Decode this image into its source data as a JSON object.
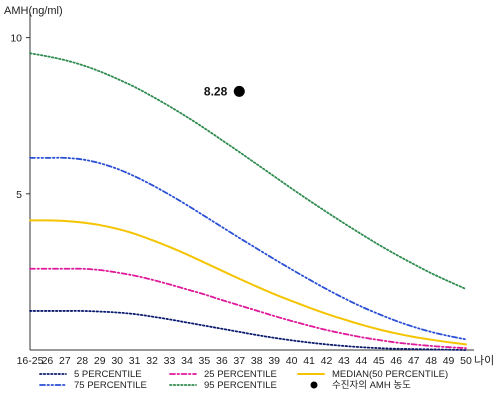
{
  "chart_data": {
    "type": "line",
    "ylabel": "AMH(ng/ml)",
    "xlabel": "나이",
    "ylim": [
      0,
      10.5
    ],
    "y_ticks": [
      5,
      10
    ],
    "categories": [
      "16-25",
      "26",
      "27",
      "28",
      "29",
      "30",
      "31",
      "32",
      "33",
      "34",
      "35",
      "36",
      "37",
      "38",
      "39",
      "40",
      "41",
      "42",
      "43",
      "44",
      "45",
      "46",
      "47",
      "48",
      "49",
      "50"
    ],
    "series": [
      {
        "name": "5 PERCENTILE",
        "color": "#0a1a6e",
        "dash": "dotted",
        "values": [
          1.25,
          1.25,
          1.25,
          1.25,
          1.23,
          1.2,
          1.15,
          1.07,
          0.98,
          0.88,
          0.78,
          0.68,
          0.58,
          0.48,
          0.39,
          0.31,
          0.24,
          0.18,
          0.13,
          0.09,
          0.06,
          0.04,
          0.03,
          0.02,
          0.01,
          0.0
        ]
      },
      {
        "name": "25 PERCENTILE",
        "color": "#e0189a",
        "dash": "dashdot",
        "values": [
          2.6,
          2.6,
          2.6,
          2.6,
          2.56,
          2.48,
          2.38,
          2.25,
          2.1,
          1.94,
          1.78,
          1.6,
          1.43,
          1.26,
          1.09,
          0.93,
          0.78,
          0.64,
          0.52,
          0.41,
          0.32,
          0.24,
          0.18,
          0.13,
          0.09,
          0.06
        ]
      },
      {
        "name": "MEDIAN(50 PERCENTILE)",
        "color": "#f5c400",
        "dash": "solid",
        "values": [
          4.15,
          4.15,
          4.13,
          4.08,
          4.0,
          3.88,
          3.72,
          3.52,
          3.3,
          3.06,
          2.8,
          2.54,
          2.28,
          2.03,
          1.79,
          1.57,
          1.36,
          1.16,
          0.98,
          0.81,
          0.66,
          0.53,
          0.42,
          0.33,
          0.25,
          0.18
        ]
      },
      {
        "name": "75 PERCENTILE",
        "color": "#2a4fd6",
        "dash": "dashdotdot",
        "values": [
          6.15,
          6.15,
          6.15,
          6.1,
          5.98,
          5.8,
          5.56,
          5.28,
          4.97,
          4.64,
          4.29,
          3.94,
          3.59,
          3.25,
          2.91,
          2.58,
          2.26,
          1.95,
          1.66,
          1.39,
          1.15,
          0.93,
          0.74,
          0.58,
          0.45,
          0.34
        ]
      },
      {
        "name": "95 PERCENTILE",
        "color": "#2e8b4e",
        "dash": "dotted",
        "values": [
          9.5,
          9.4,
          9.28,
          9.12,
          8.92,
          8.68,
          8.42,
          8.12,
          7.8,
          7.46,
          7.1,
          6.72,
          6.34,
          5.95,
          5.56,
          5.17,
          4.79,
          4.42,
          4.06,
          3.71,
          3.37,
          3.05,
          2.75,
          2.46,
          2.2,
          1.95
        ]
      }
    ],
    "highlight": {
      "name": "수진자의 AMH 농도",
      "category": "37",
      "value": 8.28,
      "label": "8.28",
      "color": "#000000"
    },
    "legend_position": "bottom",
    "grid": false
  }
}
